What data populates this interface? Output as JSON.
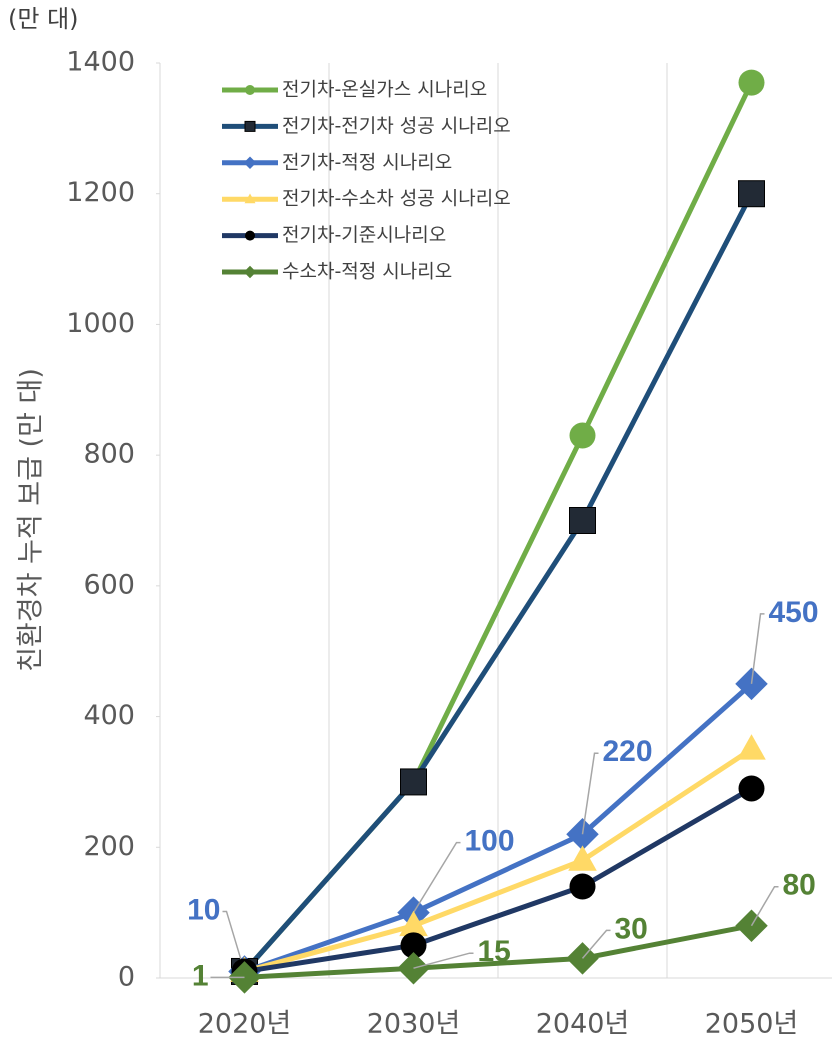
{
  "chart_data": {
    "type": "line",
    "unit_label": "(만 대)",
    "y_label": "친환경차 누적 보급 (만 대)",
    "categories": [
      "2020년",
      "2030년",
      "2040년",
      "2050년"
    ],
    "ylim": [
      0,
      1400
    ],
    "yticks": [
      0,
      200,
      400,
      600,
      800,
      1000,
      1200,
      1400
    ],
    "grid": "vertical",
    "legend": "top-left",
    "series": [
      {
        "name": "전기차-온실가스 시나리오",
        "color": "#70ad47",
        "marker": "circle",
        "marker_color": "#70ad47",
        "values": [
          10,
          300,
          830,
          1370
        ]
      },
      {
        "name": "전기차-전기차 성공 시나리오",
        "color": "#1f4e79",
        "marker": "square",
        "marker_color": "#222a35",
        "values": [
          10,
          300,
          700,
          1200
        ]
      },
      {
        "name": "전기차-적정 시나리오",
        "color": "#4472c4",
        "marker": "diamond",
        "marker_color": "#4472c4",
        "values": [
          10,
          100,
          220,
          450
        ],
        "show_labels": true
      },
      {
        "name": "전기차-수소차 성공 시나리오",
        "color": "#ffd966",
        "marker": "triangle",
        "marker_color": "#ffd966",
        "values": [
          10,
          80,
          180,
          350
        ]
      },
      {
        "name": "전기차-기준시나리오",
        "color": "#203864",
        "marker": "circle",
        "marker_color": "#000000",
        "values": [
          10,
          50,
          140,
          290
        ]
      },
      {
        "name": "수소차-적정 시나리오",
        "color": "#548235",
        "marker": "diamond",
        "marker_color": "#548235",
        "values": [
          1,
          15,
          30,
          80
        ],
        "show_labels": true
      }
    ]
  }
}
